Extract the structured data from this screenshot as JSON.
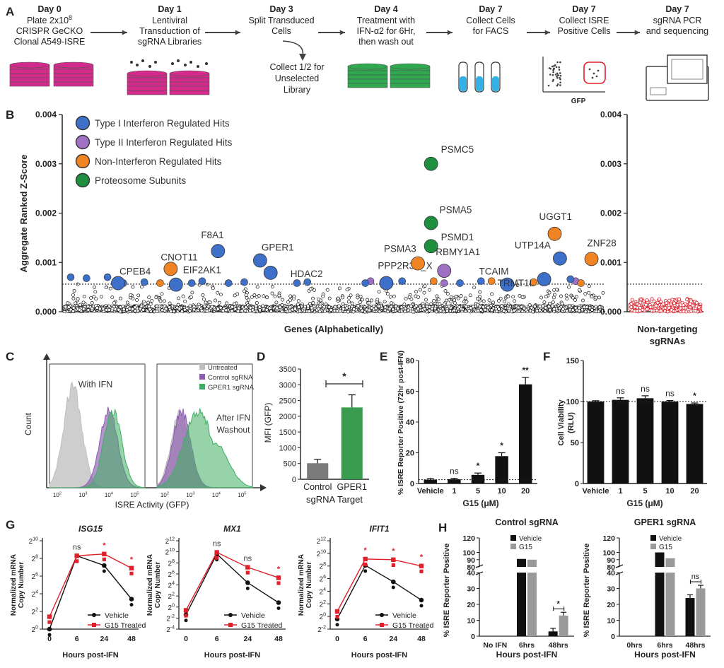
{
  "panel_letters": [
    "A",
    "B",
    "C",
    "D",
    "E",
    "F",
    "G",
    "H"
  ],
  "panel_a": {
    "steps": [
      {
        "day": "Day 0",
        "lines": [
          "Plate 2x10^8",
          "CRISPR GeCKO",
          "Clonal A549-ISRE"
        ]
      },
      {
        "day": "Day 1",
        "lines": [
          "Lentiviral",
          "Transduction of",
          "sgRNA Libraries"
        ]
      },
      {
        "day": "Day 3",
        "lines": [
          "Split Transduced",
          "Cells"
        ]
      },
      {
        "day": "Day 4",
        "lines": [
          "Treatment with",
          "IFN-α2 for 6Hr,",
          "then wash out"
        ]
      },
      {
        "day": "Day 7",
        "lines": [
          "Collect Cells",
          "for FACS"
        ]
      },
      {
        "day": "Day 7",
        "lines": [
          "Collect ISRE",
          "Positive Cells"
        ]
      },
      {
        "day": "Day 7",
        "lines": [
          "sgRNA PCR",
          "and sequencing"
        ]
      }
    ],
    "branch_lines": [
      "Collect 1/2 for",
      "Unselected",
      "Library"
    ],
    "gfp_label": "GFP",
    "colors": {
      "magenta": "#d42a8c",
      "green": "#2fa84f",
      "blue": "#33b0e6",
      "red": "#e0202a"
    }
  },
  "chart_data": [
    {
      "panel": "B",
      "type": "scatter",
      "ylabel": "Aggregate Ranked Z-Score",
      "xlabel": "Genes (Alphabetically)",
      "ylim": [
        0,
        0.004
      ],
      "yticks": [
        "0.000",
        "0.001",
        "0.002",
        "0.003",
        "0.004"
      ],
      "threshold": 0.00056,
      "legend": [
        {
          "label": "Type I Interferon Regulated Hits",
          "color": "#3e6fc9"
        },
        {
          "label": "Type II Interferon Regulated Hits",
          "color": "#a071c2"
        },
        {
          "label": "Non-Interferon Regulated Hits",
          "color": "#f08424"
        },
        {
          "label": "Proteosome Subunits",
          "color": "#1e8f3e"
        }
      ],
      "labeled_hits": [
        {
          "label": "CPEB4",
          "x": 0.09,
          "y": 0.00058,
          "cat": 0
        },
        {
          "label": "CNOT11",
          "x": 0.19,
          "y": 0.00087,
          "cat": 2
        },
        {
          "label": "EIF2AK1",
          "x": 0.2,
          "y": 0.00055,
          "cat": 0
        },
        {
          "label": "F8A1",
          "x": 0.28,
          "y": 0.00123,
          "cat": 0
        },
        {
          "label": "GPER1",
          "x": 0.36,
          "y": 0.00104,
          "cat": 0
        },
        {
          "label": "HDAC2",
          "x": 0.38,
          "y": 0.00079,
          "cat": 0
        },
        {
          "label": "PPP2R3B_X",
          "x": 0.6,
          "y": 0.00058,
          "cat": 0
        },
        {
          "label": "PSMA3",
          "x": 0.66,
          "y": 0.00098,
          "cat": 2
        },
        {
          "label": "PSMC5",
          "x": 0.685,
          "y": 0.003,
          "cat": 3
        },
        {
          "label": "PSMA5",
          "x": 0.685,
          "y": 0.0018,
          "cat": 3
        },
        {
          "label": "PSMD1",
          "x": 0.685,
          "y": 0.00133,
          "cat": 3
        },
        {
          "label": "RBMY1A1",
          "x": 0.71,
          "y": 0.00083,
          "cat": 1
        },
        {
          "label": "TCAIM",
          "x": 0.83,
          "y": 0.00055,
          "cat": 0
        },
        {
          "label": "TRMT1L",
          "x": 0.9,
          "y": 0.00066,
          "cat": 0
        },
        {
          "label": "UTP14A",
          "x": 0.93,
          "y": 0.00108,
          "cat": 0
        },
        {
          "label": "UGGT1",
          "x": 0.92,
          "y": 0.00158,
          "cat": 2
        },
        {
          "label": "ZNF28",
          "x": 0.99,
          "y": 0.00107,
          "cat": 2
        }
      ],
      "small_hits": [
        {
          "x": 0.0,
          "y": 0.0007,
          "cat": 0
        },
        {
          "x": 0.03,
          "y": 0.00068,
          "cat": 0
        },
        {
          "x": 0.07,
          "y": 0.0007,
          "cat": 0
        },
        {
          "x": 0.14,
          "y": 0.0006,
          "cat": 0
        },
        {
          "x": 0.17,
          "y": 0.00058,
          "cat": 2
        },
        {
          "x": 0.23,
          "y": 0.00058,
          "cat": 0
        },
        {
          "x": 0.3,
          "y": 0.00058,
          "cat": 0
        },
        {
          "x": 0.33,
          "y": 0.0006,
          "cat": 0
        },
        {
          "x": 0.43,
          "y": 0.00058,
          "cat": 0
        },
        {
          "x": 0.57,
          "y": 0.00062,
          "cat": 1
        },
        {
          "x": 0.63,
          "y": 0.00062,
          "cat": 0
        },
        {
          "x": 0.69,
          "y": 0.00062,
          "cat": 2
        },
        {
          "x": 0.71,
          "y": 0.00058,
          "cat": 1
        },
        {
          "x": 0.74,
          "y": 0.00058,
          "cat": 0
        },
        {
          "x": 0.78,
          "y": 0.00062,
          "cat": 0
        },
        {
          "x": 0.8,
          "y": 0.00062,
          "cat": 2
        },
        {
          "x": 0.88,
          "y": 0.0006,
          "cat": 2
        },
        {
          "x": 0.96,
          "y": 0.00062,
          "cat": 1
        },
        {
          "x": 0.97,
          "y": 0.00058,
          "cat": 2
        },
        {
          "x": 0.95,
          "y": 0.00066,
          "cat": 0
        },
        {
          "x": 0.1,
          "y": 0.00058,
          "cat": 0
        },
        {
          "x": 0.25,
          "y": 0.00062,
          "cat": 0
        },
        {
          "x": 0.45,
          "y": 0.0006,
          "cat": 0
        },
        {
          "x": 0.56,
          "y": 0.00058,
          "cat": 0
        }
      ]
    },
    {
      "panel": "B-right",
      "type": "scatter",
      "xlabel": "Non-targeting sgRNAs",
      "ylim": [
        0,
        0.004
      ],
      "yticks": [
        "0.000",
        "0.001",
        "0.002",
        "0.003",
        "0.004"
      ],
      "threshold": 0.00056,
      "point_color": "#e0202a"
    },
    {
      "panel": "C",
      "type": "area",
      "subtype": "flow-histogram",
      "ylabel": "Count",
      "xlabel": "ISRE Activity (GFP)",
      "xticks": [
        "10^2",
        "10^3",
        "10^4",
        "10^5"
      ],
      "panel_titles": [
        "With IFN",
        "After IFN Washout"
      ],
      "legend": [
        {
          "label": "Untreated",
          "color": "#bdbdbd"
        },
        {
          "label": "Control sgRNA",
          "color": "#8d5bb0"
        },
        {
          "label": "GPER1 sgRNA",
          "color": "#3fae62"
        }
      ],
      "series": [
        {
          "name": "Untreated",
          "left_mode_log": 2.6,
          "right_mode_log": 2.6
        },
        {
          "name": "Control sgRNA",
          "left_mode_log": 4.0,
          "right_mode_log": 2.65
        },
        {
          "name": "GPER1 sgRNA",
          "left_mode_log": 4.15,
          "right_mode_log": 3.3
        }
      ]
    },
    {
      "panel": "D",
      "type": "bar",
      "ylabel": "MFI (GFP)",
      "xlabel": "sgRNA Target",
      "categories": [
        "Control",
        "GPER1"
      ],
      "values": [
        510,
        2280
      ],
      "errors": [
        120,
        400
      ],
      "colors": [
        "#7a7a7a",
        "#3a9c4e"
      ],
      "ylim": [
        0,
        3500
      ],
      "yticks": [
        "0",
        "500",
        "1000",
        "1500",
        "2000",
        "2500",
        "3000",
        "3500"
      ],
      "sig": "*"
    },
    {
      "panel": "E",
      "type": "bar",
      "ylabel": "% ISRE Reporter Positive (72hr post-IFN)",
      "xlabel": "G15 (μM)",
      "categories": [
        "Vehicle",
        "1",
        "5",
        "10",
        "20"
      ],
      "values": [
        2.5,
        2.8,
        5.6,
        17.8,
        64.5
      ],
      "errors": [
        0.8,
        0.6,
        1.2,
        2.2,
        4.5
      ],
      "ylim": [
        0,
        80
      ],
      "yticks": [
        "0",
        "20",
        "40",
        "60",
        "80"
      ],
      "sig": [
        "",
        "ns",
        "*",
        "*",
        "**"
      ],
      "baseline": 2.5
    },
    {
      "panel": "F",
      "type": "bar",
      "ylabel": "Cell Viability (RLU)",
      "xlabel": "G15 (μM)",
      "categories": [
        "Vehicle",
        "1",
        "5",
        "10",
        "20"
      ],
      "values": [
        100,
        102,
        104,
        100,
        97
      ],
      "errors": [
        1,
        2.5,
        3,
        1.2,
        1.2
      ],
      "ylim": [
        0,
        150
      ],
      "yticks": [
        "0",
        "50",
        "100",
        "150"
      ],
      "sig": [
        "",
        "ns",
        "ns",
        "ns",
        "*"
      ],
      "baseline": 100
    },
    {
      "panel": "G1",
      "type": "line",
      "title": "ISG15",
      "ylabel": "Normalized mRNA Copy Number",
      "xlabel": "Hours post-IFN",
      "x": [
        "0",
        "6",
        "24",
        "48"
      ],
      "ylim": [
        0,
        10
      ],
      "yticks": [
        "2^0",
        "2^2",
        "2^4",
        "2^6",
        "2^8",
        "2^10"
      ],
      "series": [
        {
          "name": "Vehicle",
          "values": [
            0,
            8.3,
            7.2,
            3.4
          ]
        },
        {
          "name": "G15 Treated",
          "values": [
            1.4,
            8.3,
            8.5,
            6.9
          ]
        }
      ],
      "sig": [
        "",
        "ns",
        "*",
        "*"
      ]
    },
    {
      "panel": "G2",
      "type": "line",
      "title": "MX1",
      "ylabel": "Normalized mRNA Copy Number",
      "xlabel": "Hours post-IFN",
      "x": [
        "0",
        "6",
        "24",
        "48"
      ],
      "ylim": [
        -4,
        12
      ],
      "yticks": [
        "2^-4",
        "2^-2",
        "2^0",
        "2^2",
        "2^4",
        "2^6",
        "2^8",
        "2^10",
        "2^12"
      ],
      "series": [
        {
          "name": "Vehicle",
          "values": [
            -1.4,
            9.6,
            4.4,
            0.8
          ]
        },
        {
          "name": "G15 Treated",
          "values": [
            -0.6,
            9.9,
            7.2,
            5.3
          ]
        }
      ],
      "sig": [
        "",
        "ns",
        "ns",
        "*"
      ]
    },
    {
      "panel": "G3",
      "type": "line",
      "title": "IFIT1",
      "ylabel": "Normalized mRNA Copy Number",
      "xlabel": "Hours post-IFN",
      "x": [
        "0",
        "6",
        "24",
        "48"
      ],
      "ylim": [
        -2,
        12
      ],
      "yticks": [
        "2^-2",
        "2^0",
        "2^2",
        "2^4",
        "2^6",
        "2^8",
        "2^10",
        "2^12"
      ],
      "series": [
        {
          "name": "Vehicle",
          "values": [
            -0.4,
            8.1,
            5.5,
            2.6
          ]
        },
        {
          "name": "G15 Treated",
          "values": [
            0.8,
            9.1,
            9.0,
            8.0
          ]
        }
      ],
      "sig": [
        "",
        "*",
        "*",
        "*"
      ]
    },
    {
      "panel": "H1",
      "type": "bar",
      "title": "Control sgRNA",
      "ylabel": "% ISRE Reporter Positive",
      "xlabel": "Hours post-IFN",
      "categories": [
        "No IFN",
        "6hrs",
        "48hrs"
      ],
      "series": [
        {
          "name": "Vehicle",
          "values": [
            0,
            91,
            3
          ],
          "errors": [
            0,
            2,
            2
          ]
        },
        {
          "name": "G15",
          "values": [
            0,
            90,
            13
          ],
          "errors": [
            0,
            2,
            2
          ]
        }
      ],
      "yticks_low": [
        "0",
        "10",
        "20",
        "30",
        "40"
      ],
      "yticks_high": [
        "80",
        "90",
        "100",
        "120"
      ],
      "sig": "*"
    },
    {
      "panel": "H2",
      "type": "bar",
      "title": "GPER1 sgRNA",
      "ylabel": "% ISRE Reporter Positive",
      "xlabel": "Hours post-IFN",
      "categories": [
        "0hrs",
        "6hrs",
        "48hrs"
      ],
      "series": [
        {
          "name": "Vehicle",
          "values": [
            0,
            100,
            24
          ],
          "errors": [
            0,
            1,
            2
          ]
        },
        {
          "name": "G15",
          "values": [
            0,
            92,
            30
          ],
          "errors": [
            0,
            1,
            2
          ]
        }
      ],
      "yticks_low": [
        "0",
        "10",
        "20",
        "30",
        "40"
      ],
      "yticks_high": [
        "80",
        "90",
        "100",
        "120"
      ],
      "sig": "ns"
    }
  ]
}
